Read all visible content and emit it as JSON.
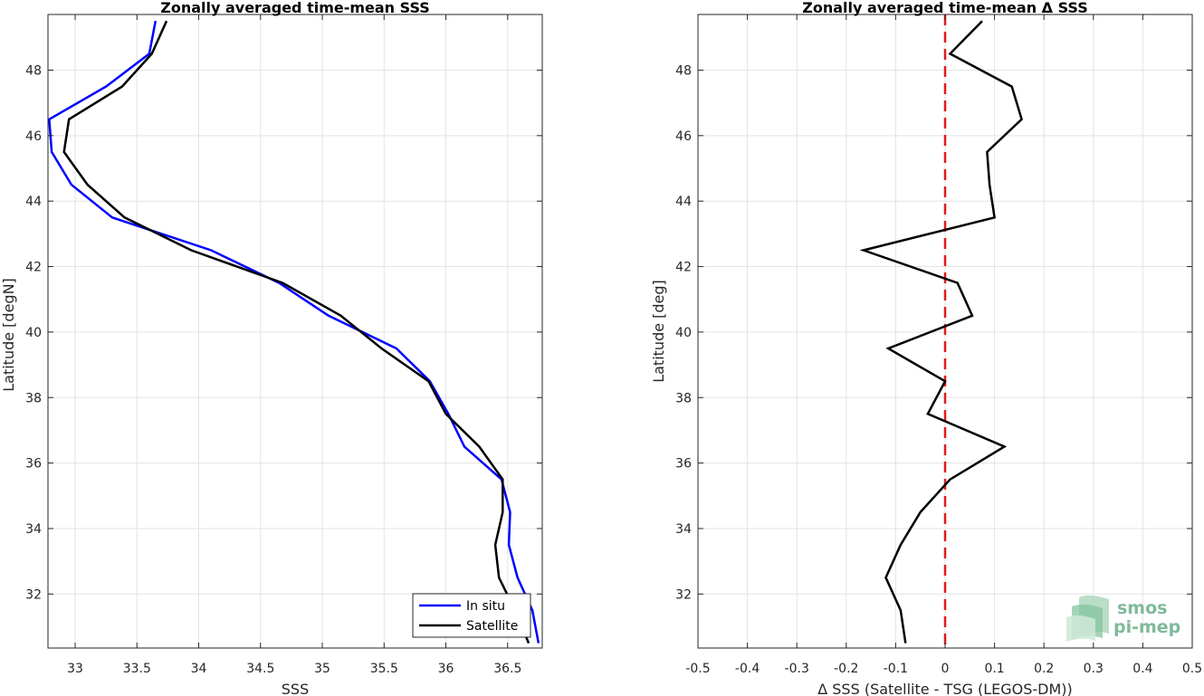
{
  "chart_data": [
    {
      "type": "line",
      "title": "Zonally averaged time-mean SSS",
      "xlabel": "SSS",
      "ylabel": "Latitude [degN]",
      "xlim": [
        32.78,
        36.78
      ],
      "ylim": [
        30.35,
        49.7
      ],
      "xticks": [
        33,
        33.5,
        34,
        34.5,
        35,
        35.5,
        36,
        36.5
      ],
      "xtick_labels": [
        "33",
        "33.5",
        "34",
        "34.5",
        "35",
        "35.5",
        "36",
        "36.5"
      ],
      "yticks": [
        32,
        34,
        36,
        38,
        40,
        42,
        44,
        46,
        48
      ],
      "ytick_labels": [
        "32",
        "34",
        "36",
        "38",
        "40",
        "42",
        "44",
        "46",
        "48"
      ],
      "grid": true,
      "legend": "bottom-right",
      "series": [
        {
          "name": "In situ",
          "color": "#0000ff",
          "x": [
            36.75,
            36.7,
            36.58,
            36.51,
            36.52,
            36.45,
            36.15,
            36.02,
            35.87,
            35.6,
            35.05,
            34.65,
            34.1,
            33.3,
            32.97,
            32.81,
            32.79,
            33.25,
            33.6,
            33.65
          ],
          "y": [
            30.5,
            31.5,
            32.5,
            33.5,
            34.5,
            35.5,
            36.5,
            37.5,
            38.5,
            39.5,
            40.5,
            41.5,
            42.5,
            43.5,
            44.5,
            45.5,
            46.5,
            47.5,
            48.5,
            49.5
          ]
        },
        {
          "name": "Satellite",
          "color": "#000000",
          "x": [
            36.67,
            36.56,
            36.43,
            36.4,
            36.46,
            36.46,
            36.27,
            36.0,
            35.86,
            35.48,
            35.15,
            34.68,
            33.94,
            33.4,
            33.1,
            32.91,
            32.95,
            33.38,
            33.62,
            33.74
          ],
          "y": [
            30.5,
            31.5,
            32.5,
            33.5,
            34.5,
            35.5,
            36.5,
            37.5,
            38.5,
            39.5,
            40.5,
            41.5,
            42.5,
            43.5,
            44.5,
            45.5,
            46.5,
            47.5,
            48.5,
            49.5
          ]
        }
      ]
    },
    {
      "type": "line",
      "title": "Zonally averaged time-mean Δ SSS",
      "xlabel": "Δ SSS (Satellite - TSG (LEGOS-DM))",
      "ylabel": "Latitude [deg]",
      "xlim": [
        -0.5,
        0.5
      ],
      "ylim": [
        30.35,
        49.7
      ],
      "xticks": [
        -0.5,
        -0.4,
        -0.3,
        -0.2,
        -0.1,
        0,
        0.1,
        0.2,
        0.3,
        0.4,
        0.5
      ],
      "xtick_labels": [
        "-0.5",
        "-0.4",
        "-0.3",
        "-0.2",
        "-0.1",
        "0",
        "0.1",
        "0.2",
        "0.3",
        "0.4",
        "0.5"
      ],
      "yticks": [
        32,
        34,
        36,
        38,
        40,
        42,
        44,
        46,
        48
      ],
      "ytick_labels": [
        "32",
        "34",
        "36",
        "38",
        "40",
        "42",
        "44",
        "46",
        "48"
      ],
      "grid": true,
      "reference_line": {
        "x": 0,
        "color": "#e41a1c",
        "style": "dashed"
      },
      "series": [
        {
          "color": "#000000",
          "x": [
            -0.08,
            -0.09,
            -0.12,
            -0.09,
            -0.05,
            0.01,
            0.12,
            -0.035,
            0.0,
            -0.115,
            0.055,
            0.025,
            -0.165,
            0.1,
            0.09,
            0.085,
            0.155,
            0.135,
            0.01,
            0.075
          ],
          "y": [
            30.5,
            31.5,
            32.5,
            33.5,
            34.5,
            35.5,
            36.5,
            37.5,
            38.5,
            39.5,
            40.5,
            41.5,
            42.5,
            43.5,
            44.5,
            45.5,
            46.5,
            47.5,
            48.5,
            49.5
          ]
        }
      ]
    }
  ],
  "logo": {
    "line1": "smos",
    "line2": "pi-mep"
  }
}
